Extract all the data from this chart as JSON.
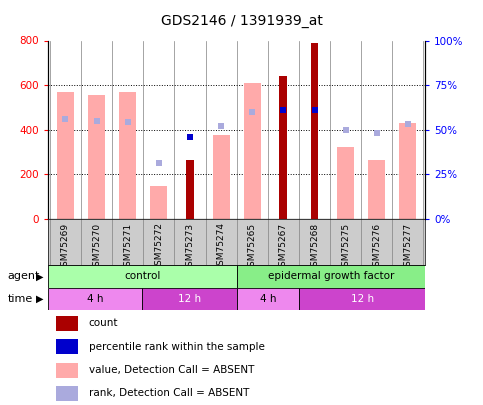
{
  "title": "GDS2146 / 1391939_at",
  "samples": [
    "GSM75269",
    "GSM75270",
    "GSM75271",
    "GSM75272",
    "GSM75273",
    "GSM75274",
    "GSM75265",
    "GSM75267",
    "GSM75268",
    "GSM75275",
    "GSM75276",
    "GSM75277"
  ],
  "count_values": [
    null,
    null,
    null,
    null,
    265,
    null,
    null,
    640,
    790,
    null,
    null,
    null
  ],
  "percentile_rank_pct": [
    null,
    null,
    null,
    null,
    46,
    null,
    null,
    61,
    61,
    null,
    null,
    null
  ],
  "value_absent": [
    570,
    555,
    570,
    145,
    null,
    375,
    610,
    null,
    null,
    320,
    263,
    430
  ],
  "rank_absent_pct": [
    56,
    55,
    54,
    31,
    null,
    52,
    60,
    null,
    null,
    50,
    48,
    53
  ],
  "ylim_left": [
    0,
    800
  ],
  "ylim_right": [
    0,
    100
  ],
  "yticks_left": [
    0,
    200,
    400,
    600,
    800
  ],
  "yticks_right": [
    0,
    25,
    50,
    75,
    100
  ],
  "yticklabels_right": [
    "0%",
    "25%",
    "50%",
    "75%",
    "100%"
  ],
  "grid_values": [
    200,
    400,
    600
  ],
  "count_color": "#aa0000",
  "percentile_color": "#0000cc",
  "value_absent_color": "#ffaaaa",
  "rank_absent_color": "#aaaadd",
  "agent_control_color": "#aaffaa",
  "agent_egf_color": "#88ee88",
  "time_4h_color": "#ee88ee",
  "time_12h_color": "#cc44cc",
  "agent_control_label": "control",
  "agent_egf_label": "epidermal growth factor",
  "time_labels": [
    "4 h",
    "12 h",
    "4 h",
    "12 h"
  ],
  "xlabel_agent": "agent",
  "xlabel_time": "time",
  "legend_count": "count",
  "legend_percentile": "percentile rank within the sample",
  "legend_value_absent": "value, Detection Call = ABSENT",
  "legend_rank_absent": "rank, Detection Call = ABSENT"
}
